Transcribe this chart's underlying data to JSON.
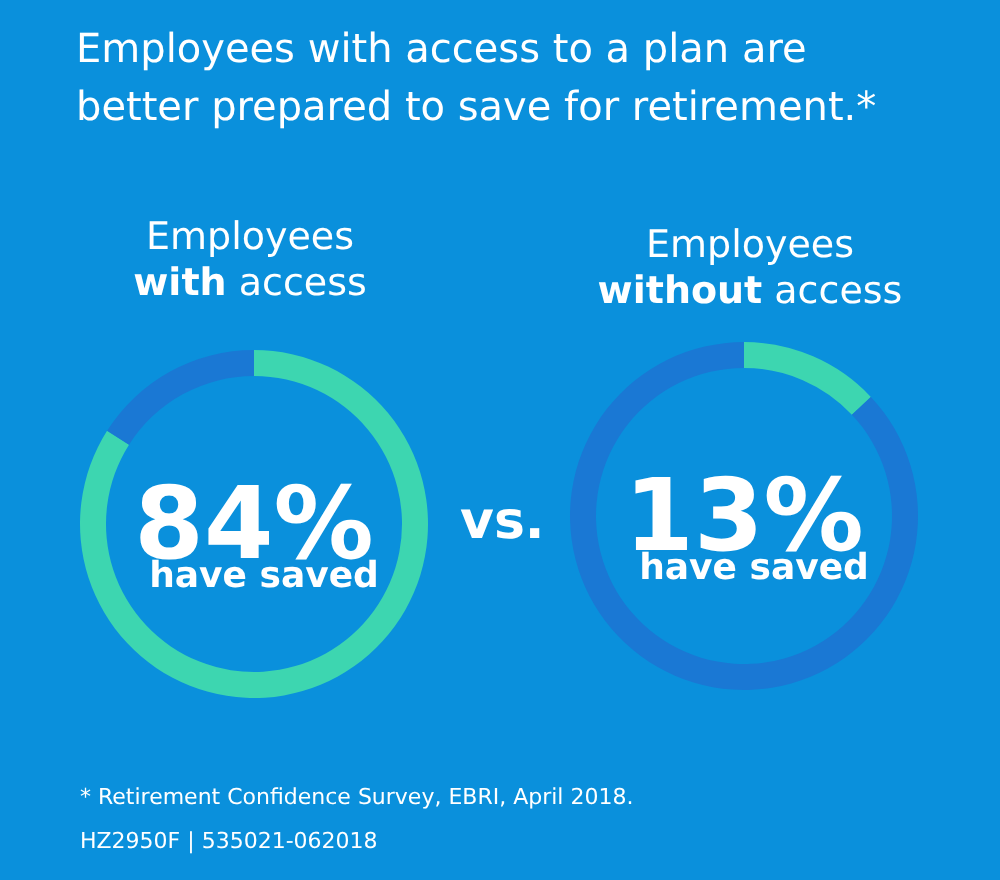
{
  "chart_data": [
    {
      "type": "donut",
      "title": "Employees with access to a plan are better prepared to save for retirement.*",
      "subtitle": "Employees with access",
      "categories": [
        null,
        null
      ],
      "values": [
        84,
        16
      ],
      "colors": [
        "#3dd6b0",
        "#1a78d4"
      ],
      "value_labels": [
        "84%",
        null
      ],
      "annotations": [
        "have saved",
        "vs.",
        "* Retirement Confidence Survey, EBRI, April 2018.",
        "HZ2950F  |  535021-062018"
      ]
    },
    {
      "type": "donut",
      "subtitle": "Employees without access",
      "categories": [
        null,
        null
      ],
      "values": [
        13,
        87
      ],
      "colors": [
        "#3dd6b0",
        "#1a78d4"
      ],
      "value_labels": [
        "13%",
        null
      ],
      "annotations": [
        "have saved"
      ]
    }
  ]
}
